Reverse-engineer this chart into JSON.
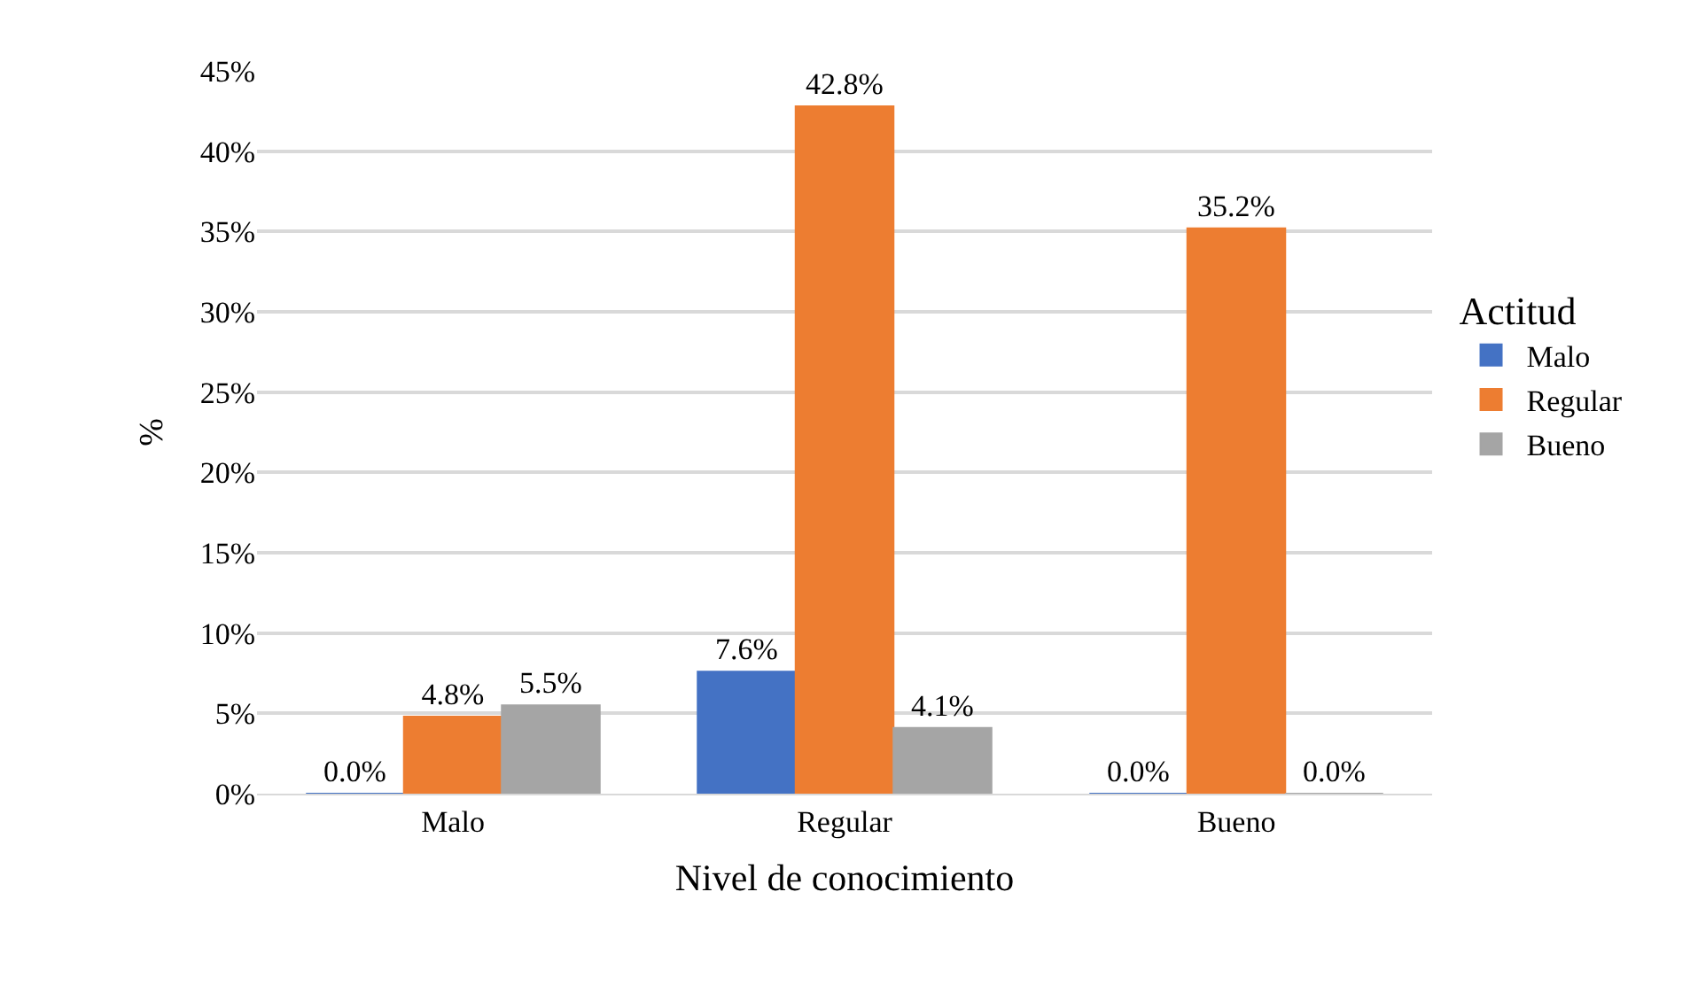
{
  "chart_data": {
    "type": "bar",
    "xlabel": "Nivel de conocimiento",
    "ylabel": "%",
    "legend_title": "Actitud",
    "categories": [
      "Malo",
      "Regular",
      "Bueno"
    ],
    "series": [
      {
        "name": "Malo",
        "color": "#4472c4",
        "values": [
          0.0,
          7.6,
          0.0
        ],
        "value_labels": [
          "0.0%",
          "7.6%",
          "0.0%"
        ]
      },
      {
        "name": "Regular",
        "color": "#ed7d31",
        "values": [
          4.8,
          42.8,
          35.2
        ],
        "value_labels": [
          "4.8%",
          "42.8%",
          "35.2%"
        ]
      },
      {
        "name": "Bueno",
        "color": "#a5a5a5",
        "values": [
          5.5,
          4.1,
          0.0
        ],
        "value_labels": [
          "5.5%",
          "4.1%",
          "0.0%"
        ]
      }
    ],
    "ylim": [
      0,
      45
    ],
    "yticks": [
      {
        "value": 0,
        "label": "0%"
      },
      {
        "value": 5,
        "label": "5%"
      },
      {
        "value": 10,
        "label": "10%"
      },
      {
        "value": 15,
        "label": "15%"
      },
      {
        "value": 20,
        "label": "20%"
      },
      {
        "value": 25,
        "label": "25%"
      },
      {
        "value": 30,
        "label": "30%"
      },
      {
        "value": 35,
        "label": "35%"
      },
      {
        "value": 40,
        "label": "40%"
      },
      {
        "value": 45,
        "label": "45%"
      }
    ],
    "grid": "y",
    "legend": "right"
  }
}
